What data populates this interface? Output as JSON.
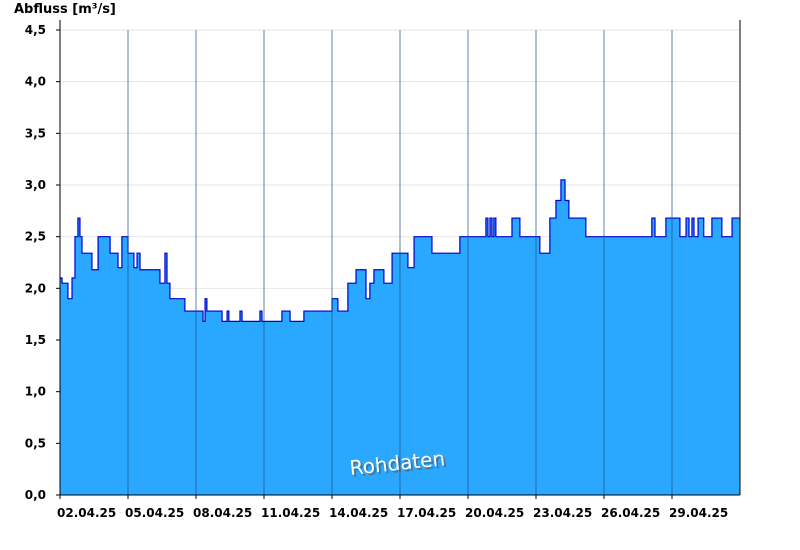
{
  "chart_data": {
    "type": "step-area",
    "title": "Abfluss [m³/s]",
    "annotation": "Rohdaten",
    "color": "#2aa7ff",
    "line_color": "#0000cc",
    "grid": true,
    "xlim": [
      0,
      30
    ],
    "xticks": [
      {
        "value": 0,
        "label": "02.04.25"
      },
      {
        "value": 3,
        "label": "05.04.25"
      },
      {
        "value": 6,
        "label": "08.04.25"
      },
      {
        "value": 9,
        "label": "11.04.25"
      },
      {
        "value": 12,
        "label": "14.04.25"
      },
      {
        "value": 15,
        "label": "17.04.25"
      },
      {
        "value": 18,
        "label": "20.04.25"
      },
      {
        "value": 21,
        "label": "23.04.25"
      },
      {
        "value": 24,
        "label": "26.04.25"
      },
      {
        "value": 27,
        "label": "29.04.25"
      }
    ],
    "ylim": [
      0,
      4.5
    ],
    "yticks": [
      {
        "value": 0,
        "label": "0,0"
      },
      {
        "value": 0.5,
        "label": "0,5"
      },
      {
        "value": 1,
        "label": "1,0"
      },
      {
        "value": 1.5,
        "label": "1,5"
      },
      {
        "value": 2,
        "label": "2,0"
      },
      {
        "value": 2.5,
        "label": "2,5"
      },
      {
        "value": 3,
        "label": "3,0"
      },
      {
        "value": 3.5,
        "label": "3,5"
      },
      {
        "value": 4,
        "label": "4,0"
      },
      {
        "value": 4.5,
        "label": "4,5"
      }
    ],
    "x": [
      0,
      0.09,
      0.35,
      0.53,
      0.66,
      0.79,
      0.88,
      0.97,
      1.41,
      1.68,
      2.21,
      2.56,
      2.73,
      3.0,
      3.26,
      3.4,
      3.53,
      4.41,
      4.63,
      4.72,
      4.85,
      5.51,
      6.31,
      6.4,
      6.48,
      7.15,
      7.37,
      7.45,
      7.94,
      8.03,
      8.82,
      8.91,
      9.79,
      10.15,
      10.76,
      12.0,
      12.26,
      12.7,
      13.06,
      13.5,
      13.67,
      13.85,
      14.29,
      14.65,
      15.35,
      15.62,
      16.41,
      17.64,
      18.79,
      18.88,
      18.97,
      19.06,
      19.14,
      19.23,
      19.94,
      20.29,
      21.17,
      21.61,
      21.88,
      22.1,
      22.28,
      22.45,
      23.2,
      26.11,
      26.25,
      26.73,
      27.35,
      27.62,
      27.75,
      27.88,
      27.97,
      28.15,
      28.4,
      28.76,
      29.2,
      29.65,
      30
    ],
    "values": [
      2.1,
      2.05,
      1.9,
      2.1,
      2.5,
      2.68,
      2.5,
      2.34,
      2.18,
      2.5,
      2.34,
      2.2,
      2.5,
      2.34,
      2.2,
      2.34,
      2.18,
      2.05,
      2.34,
      2.05,
      1.9,
      1.78,
      1.68,
      1.9,
      1.78,
      1.68,
      1.78,
      1.68,
      1.78,
      1.68,
      1.78,
      1.68,
      1.78,
      1.68,
      1.78,
      1.9,
      1.78,
      2.05,
      2.18,
      1.9,
      2.05,
      2.18,
      2.05,
      2.34,
      2.2,
      2.5,
      2.34,
      2.5,
      2.68,
      2.5,
      2.68,
      2.5,
      2.68,
      2.5,
      2.68,
      2.5,
      2.34,
      2.68,
      2.85,
      3.05,
      2.85,
      2.68,
      2.5,
      2.68,
      2.5,
      2.68,
      2.5,
      2.68,
      2.5,
      2.68,
      2.5,
      2.68,
      2.5,
      2.68,
      2.5,
      2.68,
      2.68
    ]
  }
}
